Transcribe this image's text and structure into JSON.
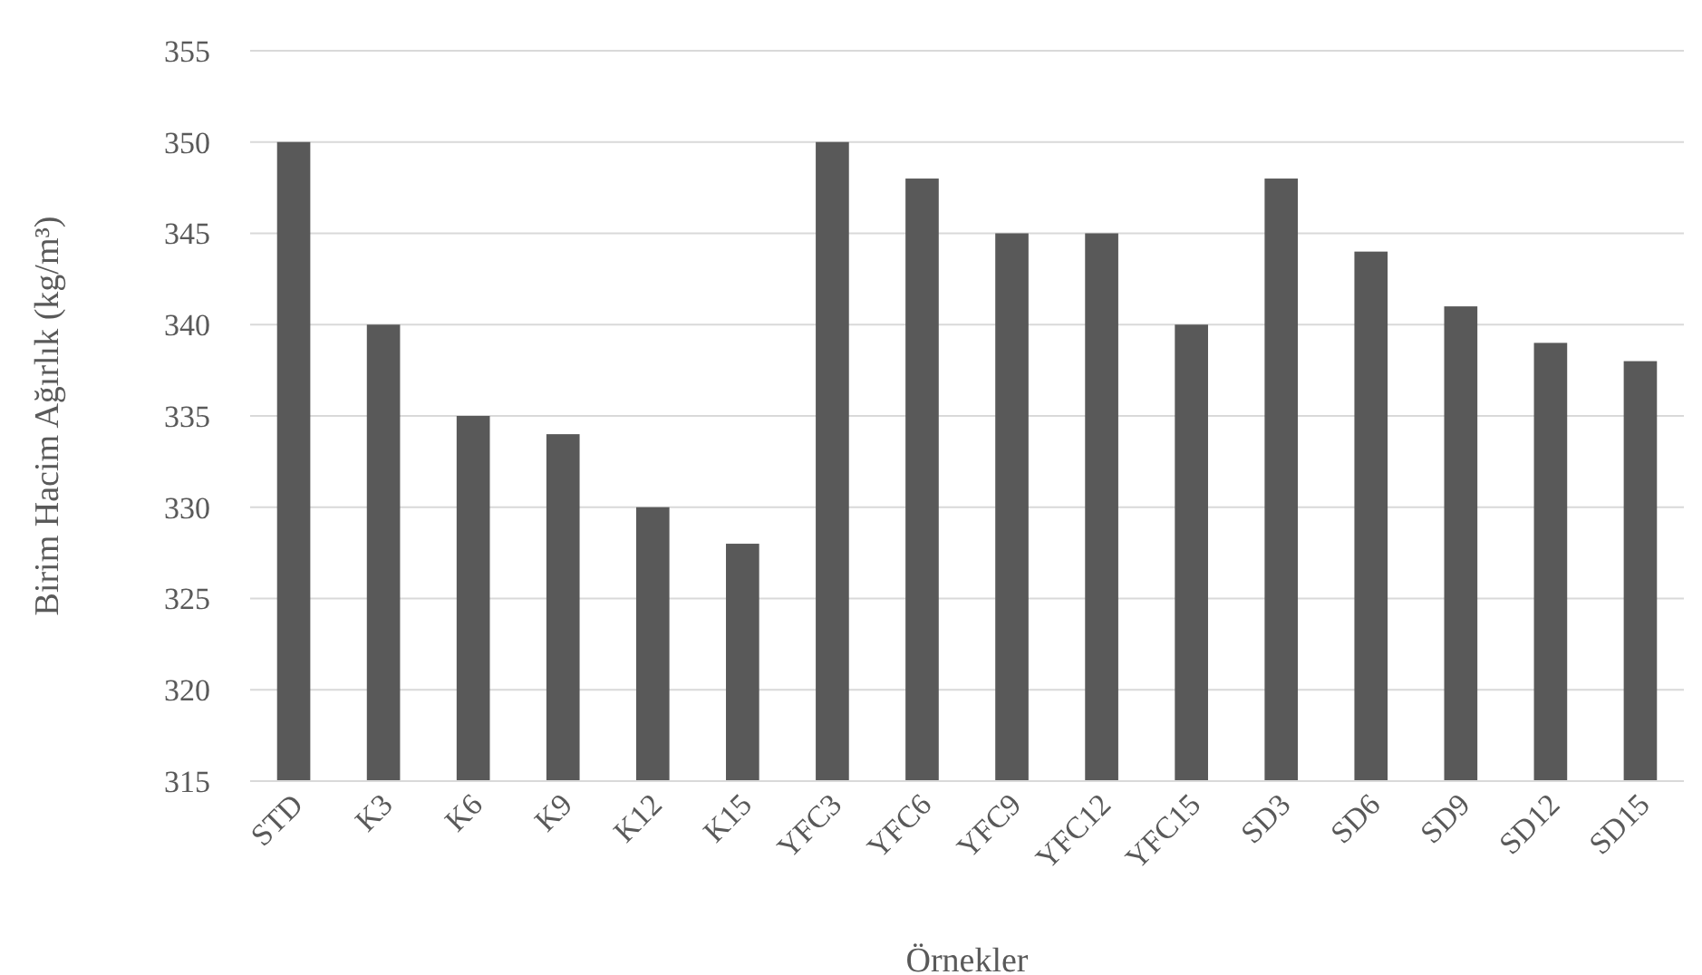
{
  "chart_data": {
    "type": "bar",
    "xlabel": "Örnekler",
    "ylabel": "Birim Hacim Ağırlık (kg/m³)",
    "categories": [
      "STD",
      "K3",
      "K6",
      "K9",
      "K12",
      "K15",
      "YFC3",
      "YFC6",
      "YFC9",
      "YFC12",
      "YFC15",
      "SD3",
      "SD6",
      "SD9",
      "SD12",
      "SD15"
    ],
    "values": [
      350,
      340,
      335,
      334,
      330,
      328,
      350,
      348,
      345,
      345,
      340,
      348,
      344,
      341,
      339,
      338
    ],
    "color": "#595959",
    "ylim": [
      315,
      355
    ],
    "yticks": [
      315,
      320,
      325,
      330,
      335,
      340,
      345,
      350,
      355
    ],
    "grid": "y"
  }
}
